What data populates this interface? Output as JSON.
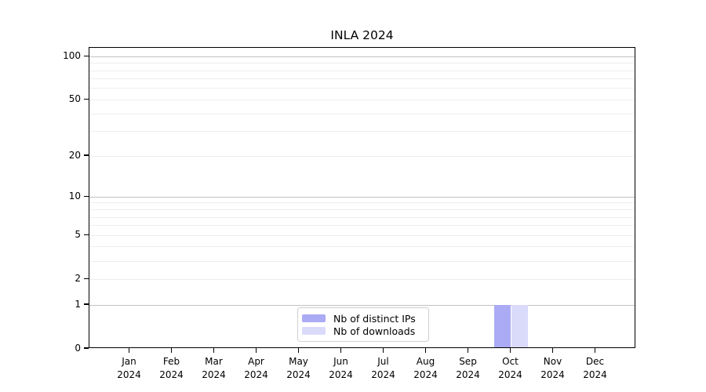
{
  "chart_data": {
    "type": "bar",
    "title": "INLA 2024",
    "categories": [
      "Jan 2024",
      "Feb 2024",
      "Mar 2024",
      "Apr 2024",
      "May 2024",
      "Jun 2024",
      "Jul 2024",
      "Aug 2024",
      "Sep 2024",
      "Oct 2024",
      "Nov 2024",
      "Dec 2024"
    ],
    "series": [
      {
        "name": "Nb of distinct IPs",
        "color": "#aaaaf5",
        "values": [
          0,
          0,
          0,
          0,
          0,
          0,
          0,
          0,
          0,
          1,
          0,
          0
        ]
      },
      {
        "name": "Nb of downloads",
        "color": "#dadafa",
        "values": [
          0,
          0,
          0,
          0,
          0,
          0,
          0,
          0,
          0,
          1,
          0,
          0
        ]
      }
    ],
    "y_axis": {
      "scale": "log1p",
      "ylim": [
        0,
        100
      ],
      "tick_values": [
        0,
        1,
        2,
        5,
        10,
        20,
        50,
        100
      ],
      "major_gridlines": [
        1,
        10,
        100
      ],
      "minor_gridlines": [
        2,
        3,
        4,
        5,
        6,
        7,
        8,
        9,
        20,
        30,
        40,
        50,
        60,
        70,
        80,
        90
      ]
    },
    "grid": true,
    "legend_position": "lower center",
    "colors": {
      "axis": "#000000",
      "major_grid": "#c2c2c2",
      "minor_grid": "#ededed",
      "legend_border": "#cfcfcf"
    }
  }
}
